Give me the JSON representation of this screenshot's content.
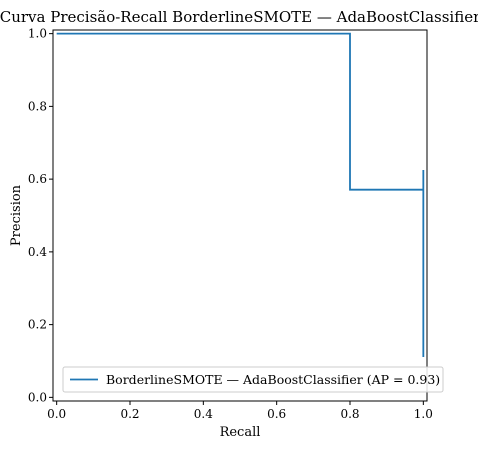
{
  "chart_data": {
    "type": "line",
    "title": "Curva Precisão-Recall BorderlineSMOTE — AdaBoostClassifier",
    "xlabel": "Recall",
    "ylabel": "Precision",
    "xlim": [
      -0.01,
      1.01
    ],
    "ylim": [
      -0.01,
      1.01
    ],
    "xticks": [
      0.0,
      0.2,
      0.4,
      0.6,
      0.8,
      1.0
    ],
    "yticks": [
      0.0,
      0.2,
      0.4,
      0.6,
      0.8,
      1.0
    ],
    "xtick_labels": [
      "0.0",
      "0.2",
      "0.4",
      "0.6",
      "0.8",
      "1.0"
    ],
    "ytick_labels": [
      "0.0",
      "0.2",
      "0.4",
      "0.6",
      "0.8",
      "1.0"
    ],
    "grid": false,
    "legend_position": "lower-left",
    "series": [
      {
        "name": "BorderlineSMOTE — AdaBoostClassifier (AP = 0.93)",
        "color": "#1f77b4",
        "drawstyle": "steps-post",
        "x": [
          0.0,
          0.8,
          0.8,
          1.0,
          1.0
        ],
        "y": [
          1.0,
          1.0,
          0.571,
          0.625,
          0.111
        ]
      }
    ]
  }
}
